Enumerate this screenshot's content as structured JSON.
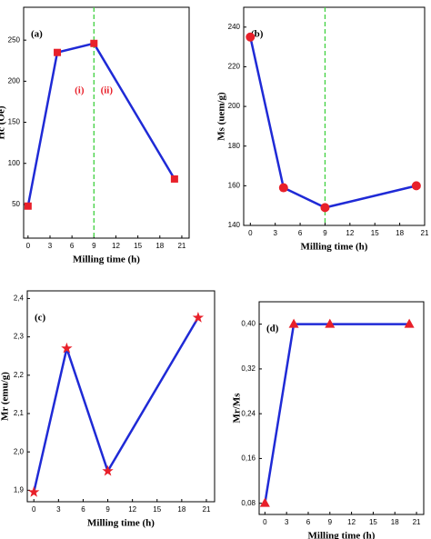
{
  "chart_data": [
    {
      "type": "line",
      "title": "(a)",
      "xlabel": "Milling time (h)",
      "ylabel": "Hc (Oe)",
      "x": [
        0,
        4,
        9,
        20
      ],
      "values": [
        48,
        235,
        246,
        81
      ],
      "color": "#1f2ad6",
      "marker": "square",
      "marker_color": "#e8202a",
      "xlim": [
        -0.6,
        22
      ],
      "xticks": [
        0,
        3,
        6,
        9,
        12,
        15,
        18,
        21
      ],
      "ylim": [
        9,
        290
      ],
      "yticks": [
        50,
        100,
        150,
        200,
        250
      ],
      "vline": 9,
      "vline_color": "#3fd13f",
      "annotations": [
        "(i)",
        "(ii)"
      ]
    },
    {
      "type": "line",
      "title": "(b)",
      "xlabel": "Milling time (h)",
      "ylabel": "Ms (uem/g)",
      "x": [
        0,
        4,
        9,
        20
      ],
      "values": [
        235,
        159,
        149,
        160
      ],
      "color": "#1f2ad6",
      "marker": "circle",
      "marker_color": "#e8202a",
      "xlim": [
        -0.8,
        21
      ],
      "xticks": [
        0,
        3,
        6,
        9,
        12,
        15,
        18,
        21
      ],
      "ylim": [
        140,
        250
      ],
      "yticks": [
        140,
        160,
        180,
        200,
        220,
        240
      ],
      "vline": 9,
      "vline_color": "#3fd13f"
    },
    {
      "type": "line",
      "title": "(c)",
      "xlabel": "Milling time (h)",
      "ylabel": "Mr (emu/g)",
      "x": [
        0,
        4,
        9,
        20
      ],
      "values": [
        1.895,
        2.27,
        1.95,
        2.35
      ],
      "color": "#1f2ad6",
      "marker": "star",
      "marker_color": "#e8202a",
      "xlim": [
        -0.8,
        22
      ],
      "xticks": [
        0,
        3,
        6,
        9,
        12,
        15,
        18,
        21
      ],
      "ylim": [
        1.87,
        2.42
      ],
      "yticks": [
        {
          "value": 1.9,
          "label": "1,9"
        },
        {
          "value": 2.0,
          "label": "2,0"
        },
        {
          "value": 2.1,
          "label": "2,1"
        },
        {
          "value": 2.2,
          "label": "2,2"
        },
        {
          "value": 2.3,
          "label": "2,3"
        },
        {
          "value": 2.4,
          "label": "2,4"
        }
      ]
    },
    {
      "type": "line",
      "title": "(d)",
      "xlabel": "Milling time (h)",
      "ylabel": "Mr/Ms",
      "x": [
        0,
        4,
        9,
        20
      ],
      "values": [
        0.08,
        0.4,
        0.4,
        0.4
      ],
      "color": "#1f2ad6",
      "marker": "triangle",
      "marker_color": "#e8202a",
      "xlim": [
        -0.8,
        22
      ],
      "xticks": [
        0,
        3,
        6,
        9,
        12,
        15,
        18,
        21
      ],
      "ylim": [
        0.06,
        0.44
      ],
      "yticks": [
        {
          "value": 0.08,
          "label": "0,08"
        },
        {
          "value": 0.16,
          "label": "0,16"
        },
        {
          "value": 0.24,
          "label": "0,24"
        },
        {
          "value": 0.32,
          "label": "0,32"
        },
        {
          "value": 0.4,
          "label": "0,40"
        }
      ]
    }
  ]
}
